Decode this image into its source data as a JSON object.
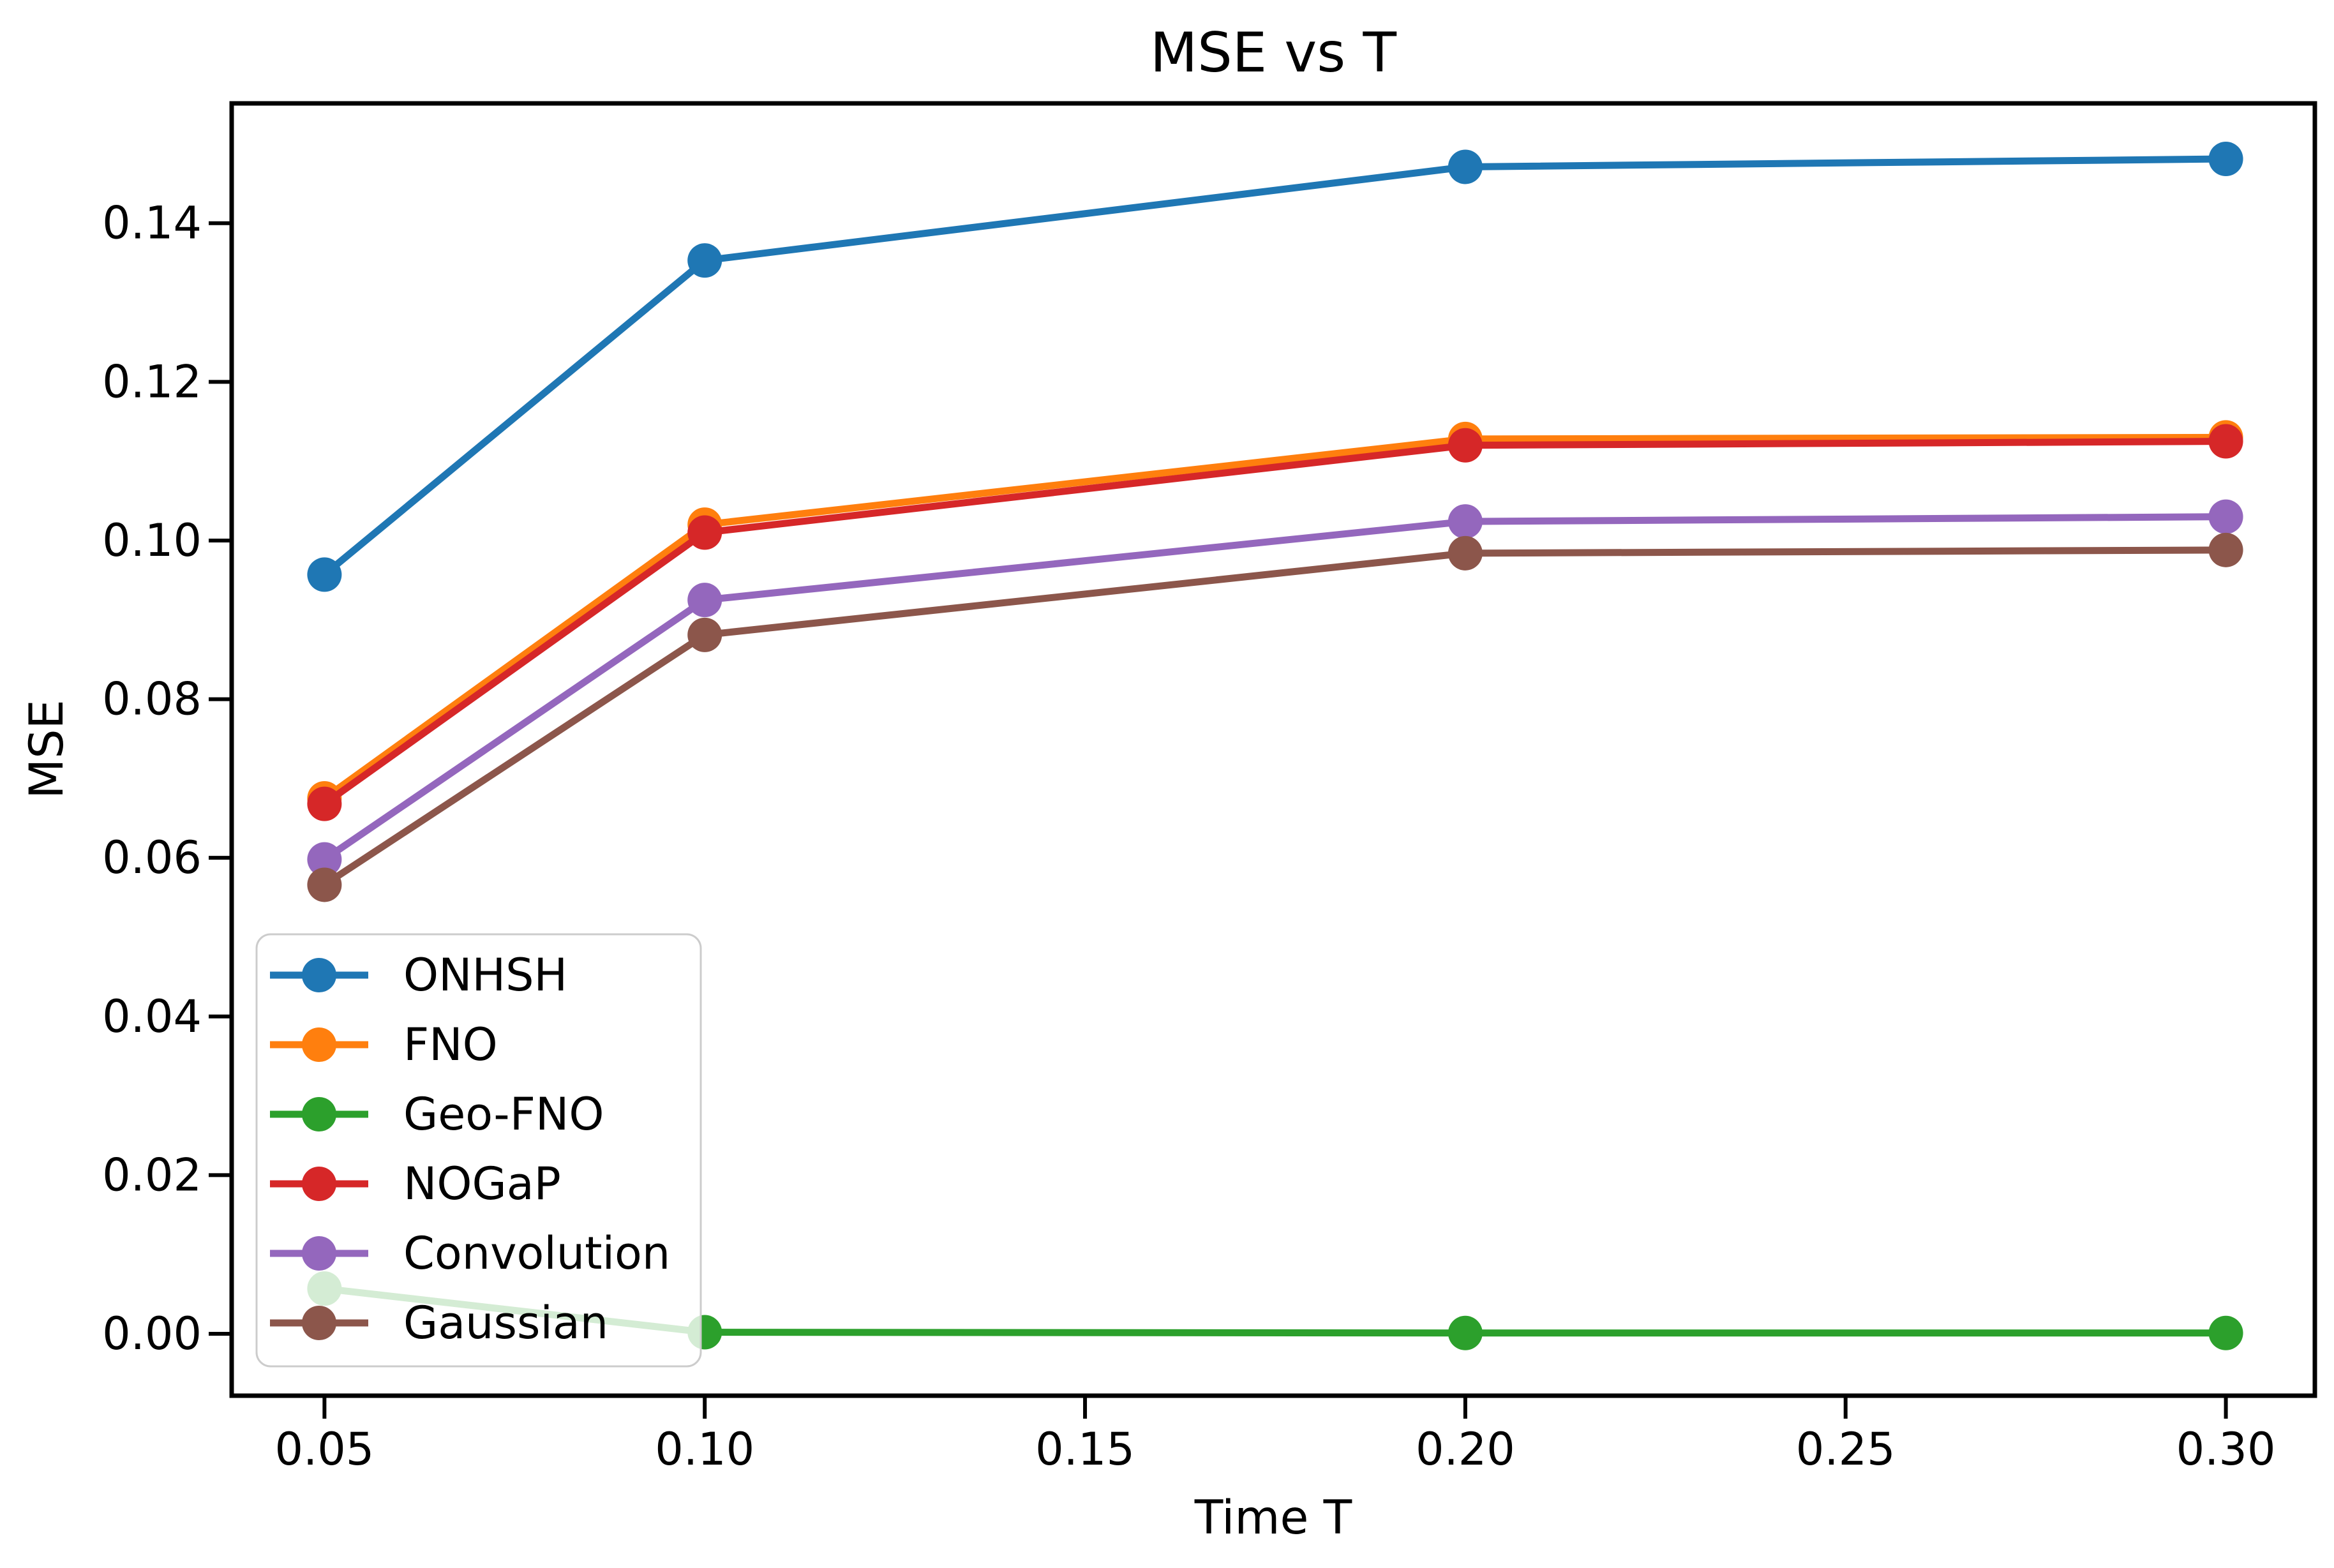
{
  "figure": {
    "background": "#ffffff",
    "text_color": "#000000",
    "spine_color": "#000000"
  },
  "chart_data": {
    "type": "line",
    "title": "MSE vs T",
    "xlabel": "Time T",
    "ylabel": "MSE",
    "x": [
      0.05,
      0.1,
      0.2,
      0.3
    ],
    "series": [
      {
        "name": "ONHSH",
        "color": "#1f77b4",
        "marker": "o",
        "values": [
          0.0957,
          0.1353,
          0.1471,
          0.1481
        ]
      },
      {
        "name": "FNO",
        "color": "#ff7f0e",
        "marker": "o",
        "values": [
          0.0675,
          0.102,
          0.1128,
          0.113
        ]
      },
      {
        "name": "Geo-FNO",
        "color": "#2ca02c",
        "marker": "o",
        "values": [
          0.0057,
          0.0002,
          0.0001,
          0.0001
        ]
      },
      {
        "name": "NOGaP",
        "color": "#d62728",
        "marker": "o",
        "values": [
          0.0668,
          0.101,
          0.112,
          0.1125
        ]
      },
      {
        "name": "Convolution",
        "color": "#9467bd",
        "marker": "o",
        "values": [
          0.0598,
          0.0925,
          0.1024,
          0.103
        ]
      },
      {
        "name": "Gaussian",
        "color": "#8c564b",
        "marker": "o",
        "values": [
          0.0566,
          0.0881,
          0.0984,
          0.0988
        ]
      }
    ],
    "xticks": {
      "values": [
        0.05,
        0.1,
        0.15,
        0.2,
        0.25,
        0.3
      ],
      "labels": [
        "0.05",
        "0.10",
        "0.15",
        "0.20",
        "0.25",
        "0.30"
      ]
    },
    "yticks": {
      "values": [
        0.0,
        0.02,
        0.04,
        0.06,
        0.08,
        0.1,
        0.12,
        0.14
      ],
      "labels": [
        "0.00",
        "0.02",
        "0.04",
        "0.06",
        "0.08",
        "0.10",
        "0.12",
        "0.14"
      ]
    },
    "xlim": [
      0.0378,
      0.3117
    ],
    "ylim": [
      -0.0078,
      0.1551
    ],
    "grid": false,
    "legend": {
      "position": "lower-left",
      "frame_fill": "#ffffff",
      "frame_alpha": 0.8,
      "border_color": "#cccccc",
      "entries": [
        "ONHSH",
        "FNO",
        "Geo-FNO",
        "NOGaP",
        "Convolution",
        "Gaussian"
      ]
    }
  }
}
